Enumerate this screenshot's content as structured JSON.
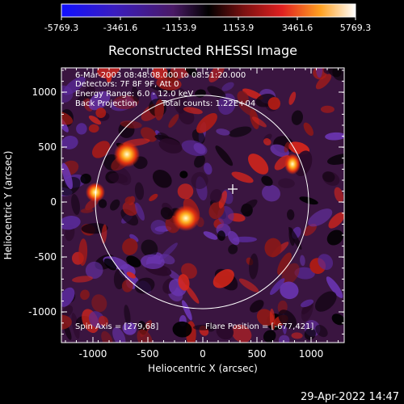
{
  "colorbar": {
    "ticks": [
      "-5769.3",
      "-3461.6",
      "-1153.9",
      "1153.9",
      "3461.6",
      "5769.3"
    ]
  },
  "plot": {
    "title": "Reconstructed RHESSI Image",
    "xlabel": "Heliocentric X (arcsec)",
    "ylabel": "Heliocentric Y (arcsec)",
    "xticks": [
      "-1000",
      "-500",
      "0",
      "500",
      "1000"
    ],
    "yticks": [
      "1000",
      "500",
      "0",
      "-500",
      "-1000"
    ],
    "xlim": [
      -1300,
      1300
    ],
    "ylim": [
      -1250,
      1250
    ]
  },
  "annotations": {
    "line1": "6-Mar-2003 08:48:08.000 to 08:51:20.000",
    "line2": "Detectors: 7F 8F 9F, Att 0",
    "line3": "Energy Range: 6.0 - 12.0 keV",
    "line4a": "Back Projection",
    "line4b": "Total counts: 1.22E+04",
    "spin_axis": "Spin Axis = [279,68]",
    "flare_position": "Flare Position = [-677,421]"
  },
  "timestamp": "29-Apr-2022 14:47"
}
